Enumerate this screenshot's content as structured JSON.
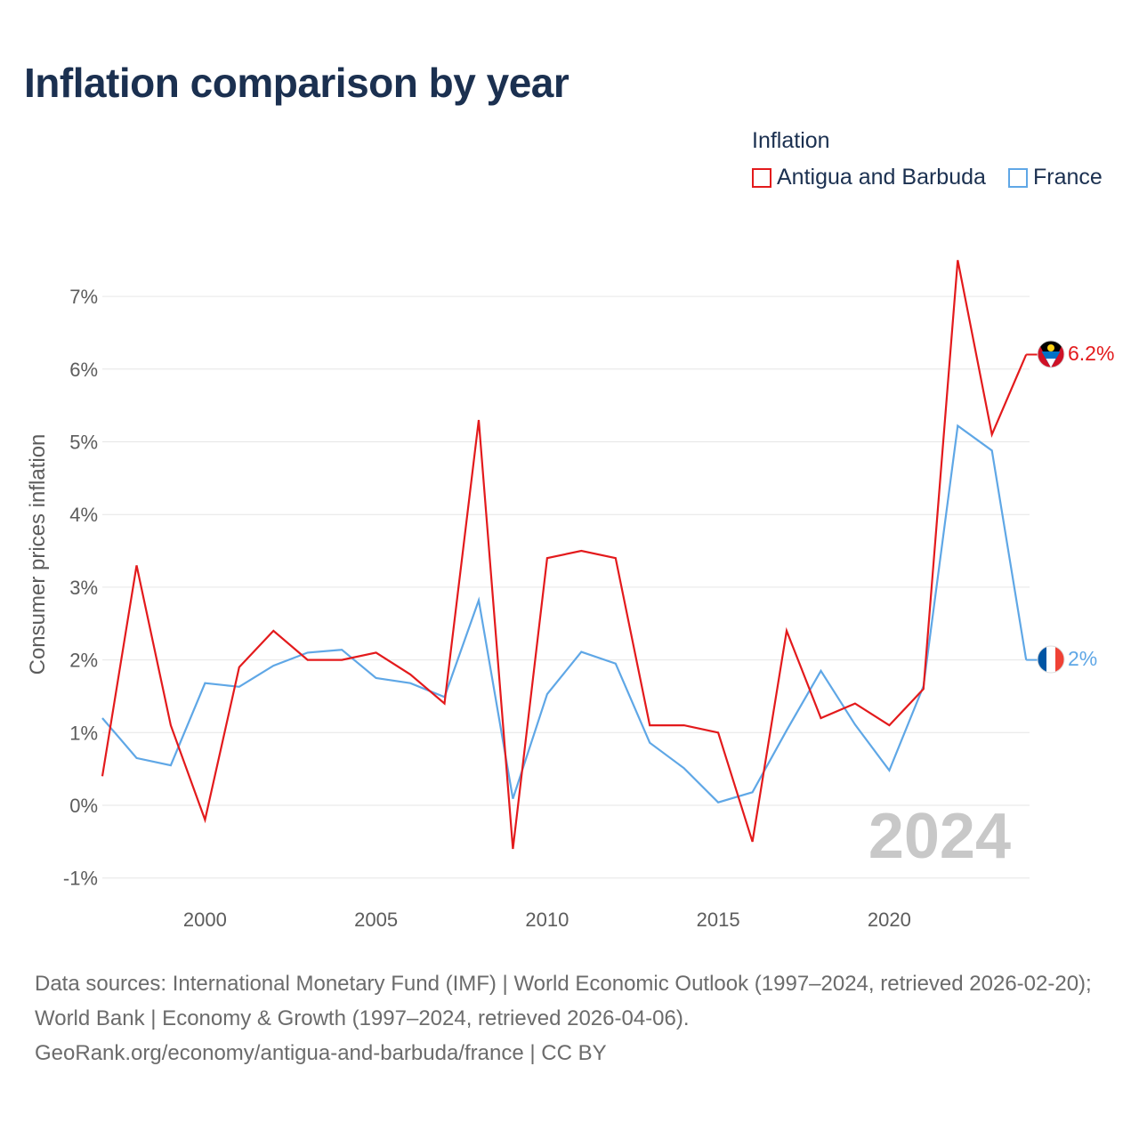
{
  "title": "Inflation comparison by year",
  "legend": {
    "title": "Inflation",
    "items": [
      {
        "label": "Antigua and Barbuda",
        "color": "#e31a1c"
      },
      {
        "label": "France",
        "color": "#5fa7e6"
      }
    ]
  },
  "watermark_year": "2024",
  "source": {
    "line1": "Data sources: International Monetary Fund (IMF) | World Economic Outlook (1997–2024, retrieved 2026-02-20); World Bank | Economy & Growth (1997–2024, retrieved 2026-04-06).",
    "line2": "GeoRank.org/economy/antigua-and-barbuda/france | CC BY"
  },
  "chart_data": {
    "type": "line",
    "title": "Inflation comparison by year",
    "xlabel": "",
    "ylabel": "Consumer prices inflation",
    "xlim": [
      1997,
      2024
    ],
    "ylim": [
      -1.2,
      7.4
    ],
    "x_ticks": [
      2000,
      2005,
      2010,
      2015,
      2020
    ],
    "y_ticks": [
      -1,
      0,
      1,
      2,
      3,
      4,
      5,
      6,
      7
    ],
    "y_tick_labels": [
      "-1%",
      "0%",
      "1%",
      "2%",
      "3%",
      "4%",
      "5%",
      "6%",
      "7%"
    ],
    "grid": true,
    "legend_position": "top-right",
    "x": [
      1997,
      1998,
      1999,
      2000,
      2001,
      2002,
      2003,
      2004,
      2005,
      2006,
      2007,
      2008,
      2009,
      2010,
      2011,
      2012,
      2013,
      2014,
      2015,
      2016,
      2017,
      2018,
      2019,
      2020,
      2021,
      2022,
      2023,
      2024
    ],
    "series": [
      {
        "name": "Antigua and Barbuda",
        "color": "#e31a1c",
        "end_label": "6.2%",
        "flag_icon": "antigua-flag-icon",
        "values": [
          0.4,
          3.3,
          1.1,
          -0.2,
          1.9,
          2.4,
          2.0,
          2.0,
          2.1,
          1.8,
          1.4,
          5.3,
          -0.6,
          3.4,
          3.5,
          3.4,
          1.1,
          1.1,
          1.0,
          -0.5,
          2.4,
          1.2,
          1.4,
          1.1,
          1.6,
          7.5,
          5.1,
          6.2
        ]
      },
      {
        "name": "France",
        "color": "#5fa7e6",
        "end_label": "2%",
        "flag_icon": "france-flag-icon",
        "values": [
          1.2,
          0.65,
          0.55,
          1.68,
          1.63,
          1.92,
          2.1,
          2.14,
          1.75,
          1.68,
          1.49,
          2.82,
          0.09,
          1.53,
          2.11,
          1.95,
          0.86,
          0.51,
          0.04,
          0.18,
          1.03,
          1.85,
          1.11,
          0.48,
          1.64,
          5.22,
          4.88,
          2.0
        ]
      }
    ]
  }
}
